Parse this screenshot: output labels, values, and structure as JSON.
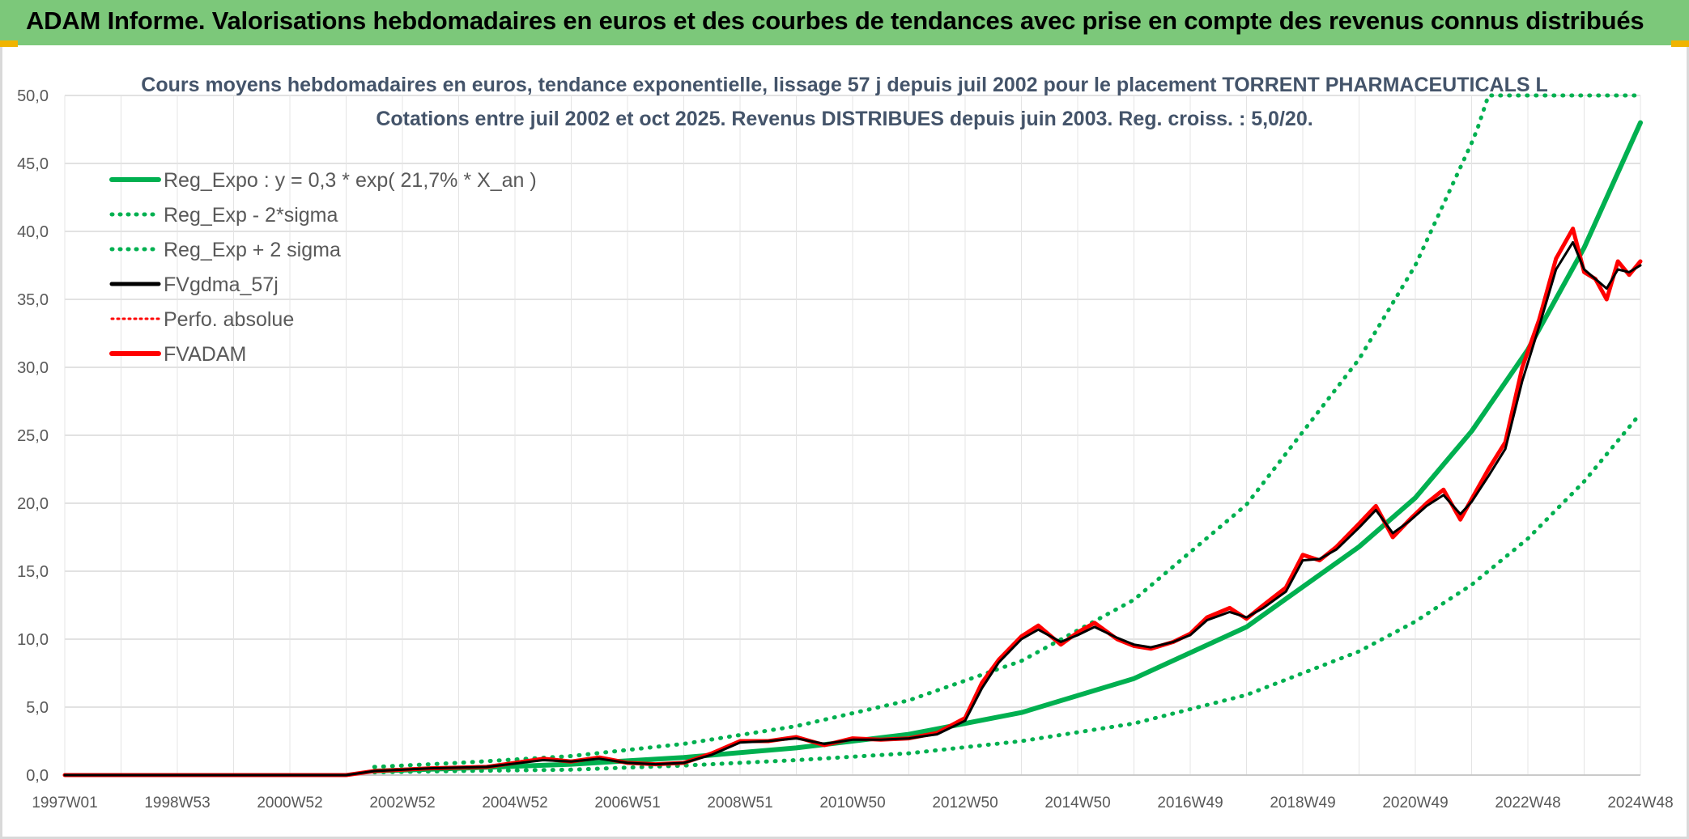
{
  "banner": {
    "title": "ADAM Informe. Valorisations hebdomadaires en euros et des courbes de tendances avec prise en compte des revenus connus distribués"
  },
  "colors": {
    "banner_bg": "#7cc87a",
    "reg_expo": "#00b050",
    "fvgdma": "#000000",
    "fvadam": "#ff0000",
    "accent": "#f0b400"
  },
  "chart_data": {
    "type": "line",
    "title": "Cours moyens hebdomadaires en euros, tendance exponentielle, lissage 57 j depuis juil 2002 pour le placement TORRENT PHARMACEUTICALS L",
    "subtitle": "Cotations entre juil 2002 et oct 2025. Revenus DISTRIBUES depuis juin 2003. Reg. croiss. : 5,0/20.",
    "xlabel": "",
    "ylabel": "",
    "ylim": [
      0,
      50
    ],
    "xlim": [
      1997.0,
      2025.0
    ],
    "y_ticks": [
      "0,0",
      "5,0",
      "10,0",
      "15,0",
      "20,0",
      "25,0",
      "30,0",
      "35,0",
      "40,0",
      "45,0",
      "50,0"
    ],
    "x_ticks": [
      "1997W01",
      "1998W53",
      "2000W52",
      "2002W52",
      "2004W52",
      "2006W51",
      "2008W51",
      "2010W50",
      "2012W50",
      "2014W50",
      "2016W49",
      "2018W49",
      "2020W49",
      "2022W48",
      "2024W48"
    ],
    "legend": {
      "position": "top-left",
      "entries": [
        {
          "label": "Reg_Expo : y = 0,3 * exp( 21,7% *  X_an )",
          "style": "solid",
          "color": "#00b050"
        },
        {
          "label": "Reg_Exp - 2*sigma",
          "style": "dotted",
          "color": "#00b050"
        },
        {
          "label": "Reg_Exp + 2 sigma",
          "style": "dotted",
          "color": "#00b050"
        },
        {
          "label": "FVgdma_57j",
          "style": "solid",
          "color": "#000000"
        },
        {
          "label": "Perfo. absolue",
          "style": "dotted",
          "color": "#ff0000"
        },
        {
          "label": "FVADAM",
          "style": "solid",
          "color": "#ff0000"
        }
      ]
    },
    "series": [
      {
        "name": "Reg_Expo",
        "x": [
          2002.5,
          2004,
          2006,
          2008,
          2010,
          2012,
          2014,
          2016,
          2018,
          2020,
          2021,
          2022,
          2023,
          2024,
          2025
        ],
        "values": [
          0.3,
          0.5,
          0.8,
          1.3,
          2.0,
          3.0,
          4.6,
          7.1,
          10.9,
          16.8,
          20.4,
          25.3,
          31.3,
          38.8,
          48.0
        ]
      },
      {
        "name": "Reg_Exp - 2*sigma",
        "x": [
          2002.5,
          2004,
          2006,
          2008,
          2010,
          2012,
          2014,
          2016,
          2018,
          2020,
          2021,
          2022,
          2023,
          2024,
          2025
        ],
        "values": [
          0.2,
          0.3,
          0.4,
          0.7,
          1.1,
          1.6,
          2.5,
          3.8,
          5.9,
          9.1,
          11.3,
          14.0,
          17.4,
          21.6,
          26.6
        ]
      },
      {
        "name": "Reg_Exp + 2 sigma",
        "x": [
          2002.5,
          2004,
          2006,
          2008,
          2010,
          2012,
          2014,
          2016,
          2018,
          2020,
          2021,
          2022,
          2022.1,
          2022.3,
          2025
        ],
        "values": [
          0.6,
          0.9,
          1.4,
          2.3,
          3.6,
          5.5,
          8.4,
          12.9,
          19.9,
          30.6,
          37.5,
          46.5,
          47.5,
          50.0,
          50.0
        ]
      },
      {
        "name": "FVADAM",
        "x": [
          1997.0,
          2002.0,
          2002.5,
          2003.5,
          2004.5,
          2005.5,
          2006.0,
          2006.5,
          2007.0,
          2007.5,
          2008.0,
          2008.5,
          2009.0,
          2009.5,
          2010.0,
          2010.5,
          2011.0,
          2011.5,
          2012.0,
          2012.5,
          2013.0,
          2013.3,
          2013.6,
          2014.0,
          2014.3,
          2014.7,
          2015.0,
          2015.3,
          2015.7,
          2016.0,
          2016.3,
          2016.7,
          2017.0,
          2017.3,
          2017.7,
          2018.0,
          2018.3,
          2018.7,
          2019.0,
          2019.3,
          2019.6,
          2020.0,
          2020.3,
          2020.6,
          2020.9,
          2021.2,
          2021.5,
          2021.8,
          2022.0,
          2022.3,
          2022.6,
          2022.9,
          2023.2,
          2023.5,
          2023.8,
          2024.0,
          2024.2,
          2024.4,
          2024.6,
          2024.8,
          2025.0
        ],
        "values": [
          0.0,
          0.0,
          0.3,
          0.5,
          0.6,
          1.2,
          1.0,
          1.3,
          0.9,
          0.8,
          0.9,
          1.6,
          2.5,
          2.5,
          2.8,
          2.2,
          2.7,
          2.6,
          2.7,
          3.1,
          4.2,
          6.8,
          8.5,
          10.2,
          11.0,
          9.6,
          10.5,
          11.2,
          10.0,
          9.5,
          9.3,
          9.8,
          10.4,
          11.6,
          12.3,
          11.5,
          12.5,
          13.8,
          16.2,
          15.8,
          16.8,
          18.5,
          19.8,
          17.5,
          18.8,
          20.0,
          21.0,
          18.8,
          20.3,
          22.5,
          24.5,
          30.0,
          33.5,
          38.0,
          40.2,
          37.0,
          36.5,
          35.0,
          37.8,
          36.8,
          37.8
        ]
      },
      {
        "name": "FVgdma_57j",
        "x": [
          1997.0,
          2002.0,
          2002.5,
          2003.5,
          2004.5,
          2005.5,
          2006.0,
          2006.5,
          2007.0,
          2007.5,
          2008.0,
          2008.5,
          2009.0,
          2009.5,
          2010.0,
          2010.5,
          2011.0,
          2011.5,
          2012.0,
          2012.5,
          2013.0,
          2013.3,
          2013.6,
          2014.0,
          2014.3,
          2014.7,
          2015.0,
          2015.3,
          2015.7,
          2016.0,
          2016.3,
          2016.7,
          2017.0,
          2017.3,
          2017.7,
          2018.0,
          2018.3,
          2018.7,
          2019.0,
          2019.3,
          2019.6,
          2020.0,
          2020.3,
          2020.6,
          2020.9,
          2021.2,
          2021.5,
          2021.8,
          2022.0,
          2022.3,
          2022.6,
          2022.9,
          2023.2,
          2023.5,
          2023.8,
          2024.0,
          2024.2,
          2024.4,
          2024.6,
          2024.8,
          2025.0
        ],
        "values": [
          0.0,
          0.0,
          0.3,
          0.5,
          0.6,
          1.1,
          1.0,
          1.2,
          0.9,
          0.8,
          0.9,
          1.5,
          2.4,
          2.5,
          2.7,
          2.3,
          2.6,
          2.6,
          2.7,
          3.0,
          4.0,
          6.4,
          8.3,
          10.0,
          10.7,
          9.8,
          10.3,
          10.9,
          10.1,
          9.6,
          9.4,
          9.8,
          10.3,
          11.4,
          12.0,
          11.6,
          12.3,
          13.5,
          15.8,
          15.9,
          16.6,
          18.2,
          19.5,
          17.8,
          18.7,
          19.8,
          20.6,
          19.2,
          20.1,
          22.0,
          24.0,
          29.0,
          33.0,
          37.2,
          39.2,
          37.2,
          36.5,
          35.8,
          37.2,
          37.0,
          37.5
        ]
      }
    ]
  }
}
